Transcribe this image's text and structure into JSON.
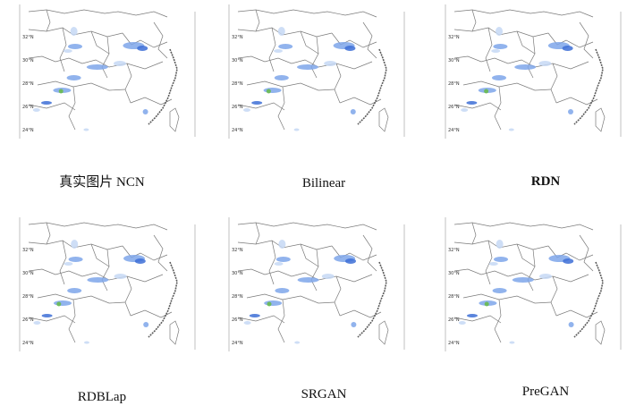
{
  "panels": [
    {
      "caption": "真实图片 NCN",
      "bold": false
    },
    {
      "caption": "Bilinear",
      "bold": false
    },
    {
      "caption": "RDN",
      "bold": true
    },
    {
      "caption": "RDBLap",
      "bold": false
    },
    {
      "caption": "SRGAN",
      "bold": false
    },
    {
      "caption": "PreGAN",
      "bold": false
    }
  ],
  "lat_labels": [
    "32°N",
    "30°N",
    "28°N",
    "26°N",
    "24°N"
  ],
  "colors": {
    "border": "#7a7a7a",
    "coast": "#5a5a5a",
    "rain_light": "#c6d8f5",
    "rain_mid": "#7ea6ea",
    "rain_strong": "#3d6fd6",
    "rain_peak": "#66bb44"
  }
}
